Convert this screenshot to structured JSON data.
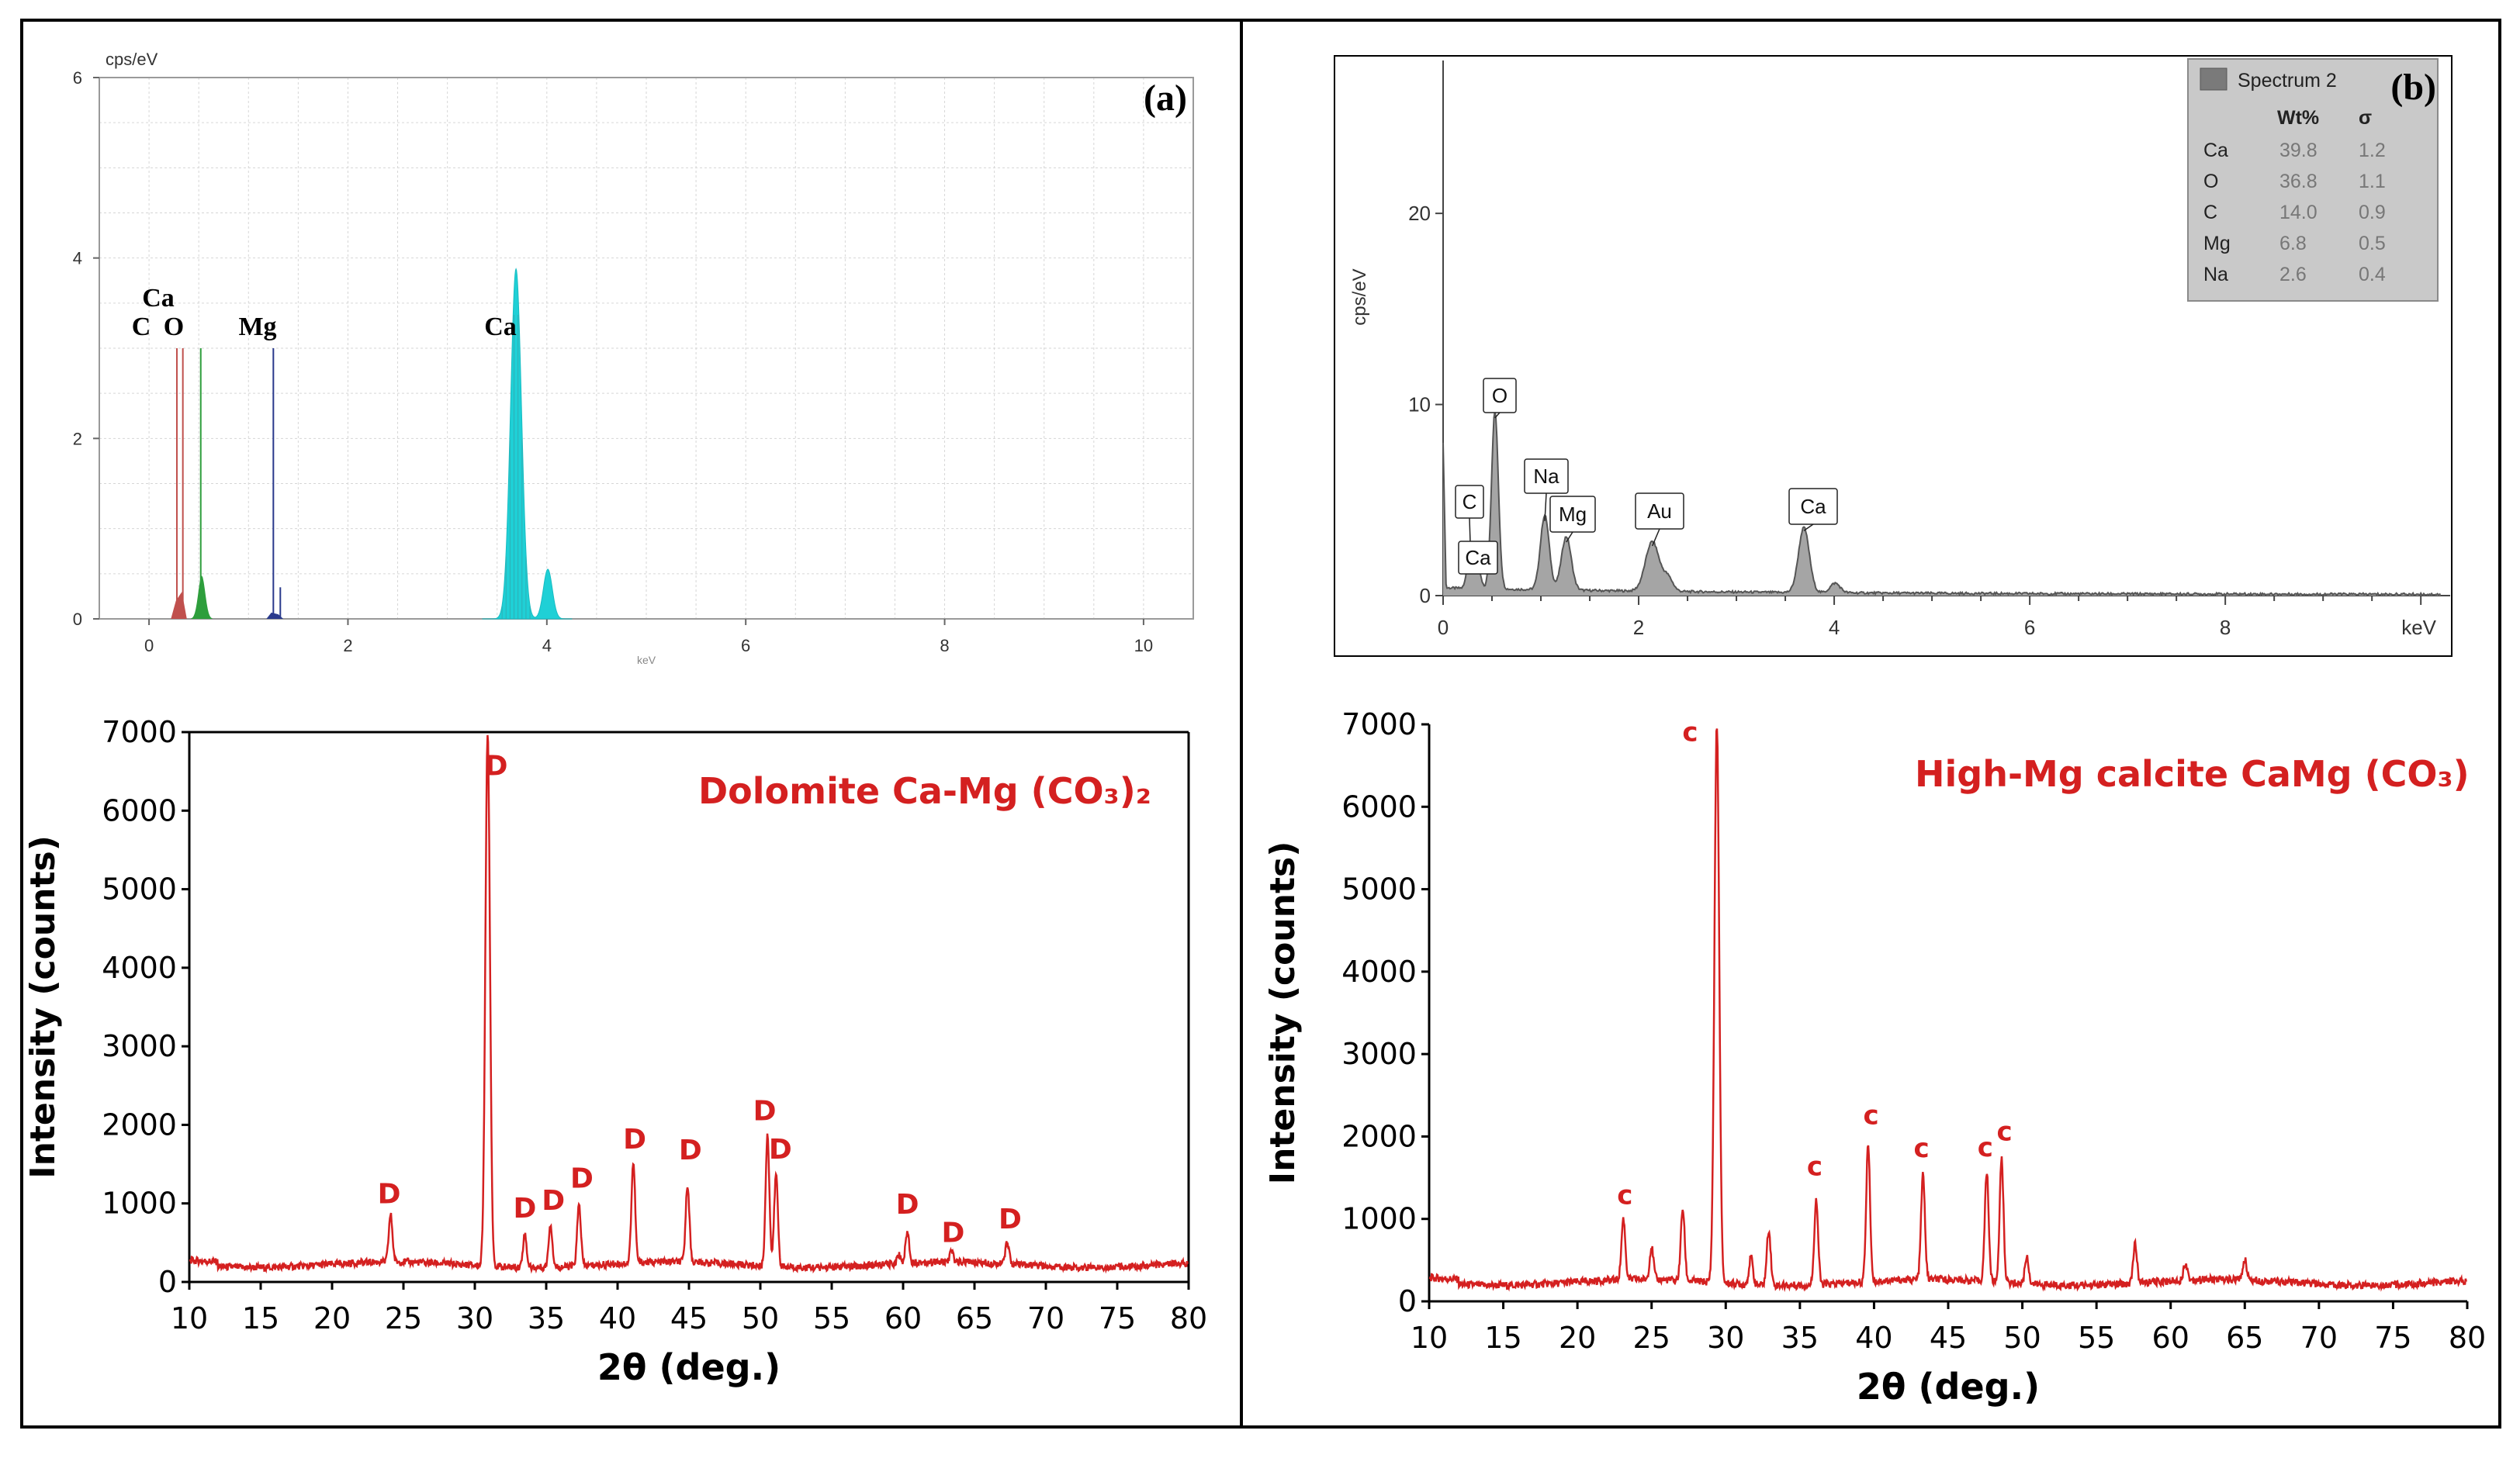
{
  "chart_data": [
    {
      "type": "line",
      "panel": "(a)",
      "subtype": "EDS spectrum",
      "ylabel": "cps/eV",
      "xlabel": "keV",
      "xlim": [
        -0.5,
        10.5
      ],
      "ylim": [
        0,
        6
      ],
      "xticks": [
        0,
        2,
        4,
        6,
        8,
        10
      ],
      "yticks": [
        0,
        2,
        4,
        6
      ],
      "peaks": [
        {
          "element": "C",
          "x": 0.28,
          "y": 3.0,
          "color": "#c0504d"
        },
        {
          "element": "Ca",
          "x": 0.34,
          "y": 3.0,
          "color": "#c0504d"
        },
        {
          "element": "O",
          "x": 0.52,
          "y": 3.0,
          "color": "#2e9e3c"
        },
        {
          "element": "Mg",
          "x": 1.25,
          "y": 3.0,
          "color": "#2a3a8c"
        },
        {
          "element": "Ca",
          "x": 3.69,
          "y": 3.9,
          "color": "#1fd0d6"
        },
        {
          "element": "Ca Kb",
          "x": 4.01,
          "y": 0.55,
          "color": "#1fd0d6"
        }
      ],
      "peak_labels": [
        {
          "text": "Ca",
          "x": 0.35,
          "y": 3.55
        },
        {
          "text": "C",
          "x": 0.2,
          "y": 3.2
        },
        {
          "text": "O",
          "x": 0.5,
          "y": 3.2
        },
        {
          "text": "Mg",
          "x": 1.3,
          "y": 3.2
        },
        {
          "text": "Ca",
          "x": 3.7,
          "y": 3.2
        }
      ]
    },
    {
      "type": "line",
      "panel": "(b)",
      "subtype": "EDS spectrum",
      "ylabel": "cps/eV",
      "xlabel": "keV",
      "xlim": [
        0,
        10
      ],
      "ylim": [
        0,
        28
      ],
      "xticks": [
        0,
        2,
        4,
        6,
        8
      ],
      "yticks": [
        0,
        10,
        20
      ],
      "peaks": [
        {
          "element": "C",
          "x": 0.28,
          "y": 2.5
        },
        {
          "element": "Ca",
          "x": 0.34,
          "y": 1.5
        },
        {
          "element": "O",
          "x": 0.53,
          "y": 9.3
        },
        {
          "element": "Na",
          "x": 1.04,
          "y": 3.9
        },
        {
          "element": "Mg",
          "x": 1.26,
          "y": 2.8
        },
        {
          "element": "Au",
          "x": 2.14,
          "y": 2.6
        },
        {
          "element": "Ca",
          "x": 3.69,
          "y": 3.4
        }
      ],
      "peak_labels": [
        "O",
        "Na",
        "C",
        "Mg",
        "Au",
        "Ca",
        "Ca"
      ],
      "legend": {
        "title": "Spectrum 2",
        "columns": [
          "Wt%",
          "σ"
        ],
        "rows": [
          {
            "element": "Ca",
            "wt": "39.8",
            "sigma": "1.2"
          },
          {
            "element": "O",
            "wt": "36.8",
            "sigma": "1.1"
          },
          {
            "element": "C",
            "wt": "14.0",
            "sigma": "0.9"
          },
          {
            "element": "Mg",
            "wt": "6.8",
            "sigma": "0.5"
          },
          {
            "element": "Na",
            "wt": "2.6",
            "sigma": "0.4"
          }
        ]
      }
    },
    {
      "type": "line",
      "subtype": "XRD pattern",
      "title": "Dolomite  Ca-Mg (CO₃)₂",
      "xlabel": "2θ (deg.)",
      "ylabel": "Intensity (counts)",
      "xlim": [
        10,
        80
      ],
      "ylim": [
        0,
        7000
      ],
      "xticks": [
        10,
        15,
        20,
        25,
        30,
        35,
        40,
        45,
        50,
        55,
        60,
        65,
        70,
        75,
        80
      ],
      "yticks": [
        0,
        1000,
        2000,
        3000,
        4000,
        5000,
        6000,
        7000
      ],
      "baseline": 220,
      "series_peaks": [
        {
          "x": 24.1,
          "y": 820
        },
        {
          "x": 30.9,
          "y": 7000
        },
        {
          "x": 33.5,
          "y": 640
        },
        {
          "x": 35.3,
          "y": 770
        },
        {
          "x": 37.3,
          "y": 1000
        },
        {
          "x": 41.1,
          "y": 1500
        },
        {
          "x": 44.9,
          "y": 1210
        },
        {
          "x": 50.5,
          "y": 1900
        },
        {
          "x": 51.1,
          "y": 1400
        },
        {
          "x": 59.7,
          "y": 330
        },
        {
          "x": 60.3,
          "y": 620
        },
        {
          "x": 63.4,
          "y": 350
        },
        {
          "x": 67.3,
          "y": 500
        }
      ],
      "peak_labels": [
        {
          "text": "D",
          "x": 24.0,
          "y": 1000
        },
        {
          "text": "D",
          "x": 31.5,
          "y": 6450
        },
        {
          "text": "D",
          "x": 33.5,
          "y": 820
        },
        {
          "text": "D",
          "x": 35.5,
          "y": 920
        },
        {
          "text": "D",
          "x": 37.5,
          "y": 1200
        },
        {
          "text": "D",
          "x": 41.2,
          "y": 1700
        },
        {
          "text": "D",
          "x": 45.1,
          "y": 1560
        },
        {
          "text": "D",
          "x": 50.3,
          "y": 2060
        },
        {
          "text": "D",
          "x": 51.4,
          "y": 1570
        },
        {
          "text": "D",
          "x": 60.3,
          "y": 870
        },
        {
          "text": "D",
          "x": 63.5,
          "y": 510
        },
        {
          "text": "D",
          "x": 67.5,
          "y": 680
        }
      ],
      "color": "#d42020"
    },
    {
      "type": "line",
      "subtype": "XRD pattern",
      "title": "High-Mg calcite CaMg (CO₃)",
      "xlabel": "2θ (deg.)",
      "ylabel": "Intensity (counts)",
      "xlim": [
        10,
        80
      ],
      "ylim": [
        0,
        7000
      ],
      "xticks": [
        10,
        15,
        20,
        25,
        30,
        35,
        40,
        45,
        50,
        55,
        60,
        65,
        70,
        75,
        80
      ],
      "yticks": [
        0,
        1000,
        2000,
        3000,
        4000,
        5000,
        6000,
        7000
      ],
      "baseline": 230,
      "series_peaks": [
        {
          "x": 23.1,
          "y": 970
        },
        {
          "x": 25.0,
          "y": 620
        },
        {
          "x": 27.1,
          "y": 1100
        },
        {
          "x": 29.4,
          "y": 7000
        },
        {
          "x": 31.7,
          "y": 560
        },
        {
          "x": 32.9,
          "y": 900
        },
        {
          "x": 36.1,
          "y": 1260
        },
        {
          "x": 39.6,
          "y": 1900
        },
        {
          "x": 43.3,
          "y": 1500
        },
        {
          "x": 47.6,
          "y": 1560
        },
        {
          "x": 48.6,
          "y": 1720
        },
        {
          "x": 50.3,
          "y": 560
        },
        {
          "x": 57.6,
          "y": 700
        },
        {
          "x": 61.0,
          "y": 440
        },
        {
          "x": 65.0,
          "y": 480
        }
      ],
      "peak_labels": [
        {
          "text": "c",
          "x": 23.2,
          "y": 1180
        },
        {
          "text": "c",
          "x": 27.6,
          "y": 6800
        },
        {
          "text": "c",
          "x": 36.0,
          "y": 1530
        },
        {
          "text": "c",
          "x": 39.8,
          "y": 2150
        },
        {
          "text": "c",
          "x": 43.2,
          "y": 1750
        },
        {
          "text": "c",
          "x": 47.5,
          "y": 1760
        },
        {
          "text": "c",
          "x": 48.8,
          "y": 1950
        }
      ],
      "color": "#d42020"
    }
  ]
}
